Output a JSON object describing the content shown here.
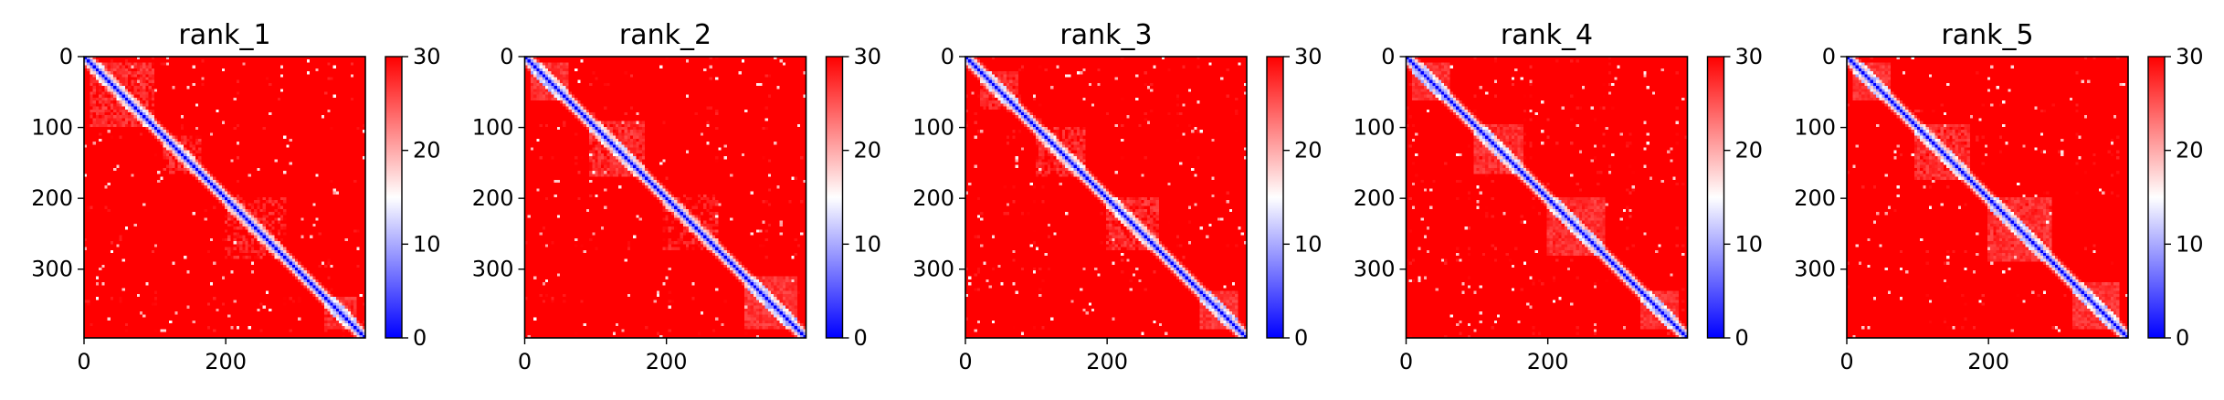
{
  "figure": {
    "colormap": {
      "name": "bwr",
      "low": "#0000ff",
      "mid": "#ffffff",
      "high": "#ff0000"
    }
  },
  "chart_data": [
    {
      "type": "heatmap",
      "title": "rank_1",
      "xlabel": "",
      "ylabel": "",
      "x_ticks": [
        "0",
        "200"
      ],
      "x_tick_values": [
        0,
        200
      ],
      "y_ticks": [
        "0",
        "100",
        "200",
        "300"
      ],
      "y_tick_values": [
        0,
        100,
        200,
        300
      ],
      "xlim": [
        0,
        397
      ],
      "ylim": [
        397,
        0
      ],
      "matrix_size": 397,
      "colorbar": {
        "range": [
          0,
          30
        ],
        "ticks": [
          "0",
          "10",
          "20",
          "30"
        ],
        "tick_values": [
          0,
          10,
          20,
          30
        ]
      },
      "low_value_regions": [
        {
          "from": 10,
          "to": 100,
          "level": 0.45
        },
        {
          "from": 110,
          "to": 165,
          "level": 0.5
        },
        {
          "from": 200,
          "to": 285,
          "level": 0.55
        },
        {
          "from": 340,
          "to": 385,
          "level": 0.35
        }
      ]
    },
    {
      "type": "heatmap",
      "title": "rank_2",
      "xlabel": "",
      "ylabel": "",
      "x_ticks": [
        "0",
        "200"
      ],
      "x_tick_values": [
        0,
        200
      ],
      "y_ticks": [
        "0",
        "100",
        "200",
        "300"
      ],
      "y_tick_values": [
        0,
        100,
        200,
        300
      ],
      "xlim": [
        0,
        397
      ],
      "ylim": [
        397,
        0
      ],
      "matrix_size": 397,
      "colorbar": {
        "range": [
          0,
          30
        ],
        "ticks": [
          "0",
          "10",
          "20",
          "30"
        ],
        "tick_values": [
          0,
          10,
          20,
          30
        ]
      },
      "low_value_regions": [
        {
          "from": 10,
          "to": 60,
          "level": 0.3
        },
        {
          "from": 90,
          "to": 170,
          "level": 0.4
        },
        {
          "from": 195,
          "to": 275,
          "level": 0.6
        },
        {
          "from": 310,
          "to": 385,
          "level": 0.3
        }
      ]
    },
    {
      "type": "heatmap",
      "title": "rank_3",
      "xlabel": "",
      "ylabel": "",
      "x_ticks": [
        "0",
        "200"
      ],
      "x_tick_values": [
        0,
        200
      ],
      "y_ticks": [
        "0",
        "100",
        "200",
        "300"
      ],
      "y_tick_values": [
        0,
        100,
        200,
        300
      ],
      "xlim": [
        0,
        397
      ],
      "ylim": [
        397,
        0
      ],
      "matrix_size": 397,
      "colorbar": {
        "range": [
          0,
          30
        ],
        "ticks": [
          "0",
          "10",
          "20",
          "30"
        ],
        "tick_values": [
          0,
          10,
          20,
          30
        ]
      },
      "low_value_regions": [
        {
          "from": 20,
          "to": 75,
          "level": 0.4
        },
        {
          "from": 100,
          "to": 170,
          "level": 0.45
        },
        {
          "from": 200,
          "to": 275,
          "level": 0.45
        },
        {
          "from": 330,
          "to": 385,
          "level": 0.3
        }
      ]
    },
    {
      "type": "heatmap",
      "title": "rank_4",
      "xlabel": "",
      "ylabel": "",
      "x_ticks": [
        "0",
        "200"
      ],
      "x_tick_values": [
        0,
        200
      ],
      "y_ticks": [
        "0",
        "100",
        "200",
        "300"
      ],
      "y_tick_values": [
        0,
        100,
        200,
        300
      ],
      "xlim": [
        0,
        397
      ],
      "ylim": [
        397,
        0
      ],
      "matrix_size": 397,
      "colorbar": {
        "range": [
          0,
          30
        ],
        "ticks": [
          "0",
          "10",
          "20",
          "30"
        ],
        "tick_values": [
          0,
          10,
          20,
          30
        ]
      },
      "low_value_regions": [
        {
          "from": 10,
          "to": 60,
          "level": 0.3
        },
        {
          "from": 95,
          "to": 165,
          "level": 0.35
        },
        {
          "from": 200,
          "to": 280,
          "level": 0.35
        },
        {
          "from": 330,
          "to": 385,
          "level": 0.3
        }
      ]
    },
    {
      "type": "heatmap",
      "title": "rank_5",
      "xlabel": "",
      "ylabel": "",
      "x_ticks": [
        "0",
        "200"
      ],
      "x_tick_values": [
        0,
        200
      ],
      "y_ticks": [
        "0",
        "100",
        "200",
        "300"
      ],
      "y_tick_values": [
        0,
        100,
        200,
        300
      ],
      "xlim": [
        0,
        397
      ],
      "ylim": [
        397,
        0
      ],
      "matrix_size": 397,
      "colorbar": {
        "range": [
          0,
          30
        ],
        "ticks": [
          "0",
          "10",
          "20",
          "30"
        ],
        "tick_values": [
          0,
          10,
          20,
          30
        ]
      },
      "low_value_regions": [
        {
          "from": 10,
          "to": 60,
          "level": 0.3
        },
        {
          "from": 95,
          "to": 175,
          "level": 0.4
        },
        {
          "from": 200,
          "to": 290,
          "level": 0.35
        },
        {
          "from": 320,
          "to": 385,
          "level": 0.3
        }
      ]
    }
  ]
}
